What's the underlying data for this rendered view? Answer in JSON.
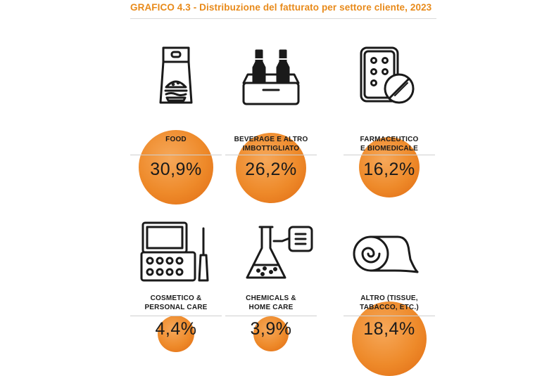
{
  "title": "GRAFICO 4.3 - Distribuzione del fatturato per settore cliente, 2023",
  "chart_data": {
    "type": "bubble",
    "categories": [
      "FOOD",
      "BEVERAGE E ALTRO IMBOTTIGLIATO",
      "FARMACEUTICO E BIOMEDICALE",
      "COSMETICO & PERSONAL CARE",
      "CHEMICALS & HOME CARE",
      "ALTRO (TISSUE, TABACCO, ETC.)"
    ],
    "values": [
      30.9,
      26.2,
      16.2,
      4.4,
      3.9,
      18.4
    ],
    "unit": "%"
  },
  "items": [
    {
      "label_lines": [
        "FOOD",
        ""
      ],
      "value_text": "30,9%",
      "icon": "food-bag-icon"
    },
    {
      "label_lines": [
        "BEVERAGE E ALTRO",
        "IMBOTTIGLIATO"
      ],
      "value_text": "26,2%",
      "icon": "bottle-crate-icon"
    },
    {
      "label_lines": [
        "FARMACEUTICO",
        "E BIOMEDICALE"
      ],
      "value_text": "16,2%",
      "icon": "pills-icon"
    },
    {
      "label_lines": [
        "COSMETICO &",
        "PERSONAL CARE"
      ],
      "value_text": "4,4%",
      "icon": "makeup-palette-icon"
    },
    {
      "label_lines": [
        "CHEMICALS &",
        "HOME CARE"
      ],
      "value_text": "3,9%",
      "icon": "flask-icon"
    },
    {
      "label_lines": [
        "ALTRO (TISSUE,",
        "TABACCO, ETC.)"
      ],
      "value_text": "18,4%",
      "icon": "tissue-roll-icon"
    }
  ],
  "colors": {
    "accent": "#e88a1a",
    "bubble": "#ee8a2a",
    "bubble_dark": "#e06a12",
    "bubble_light": "#f6a85a"
  }
}
